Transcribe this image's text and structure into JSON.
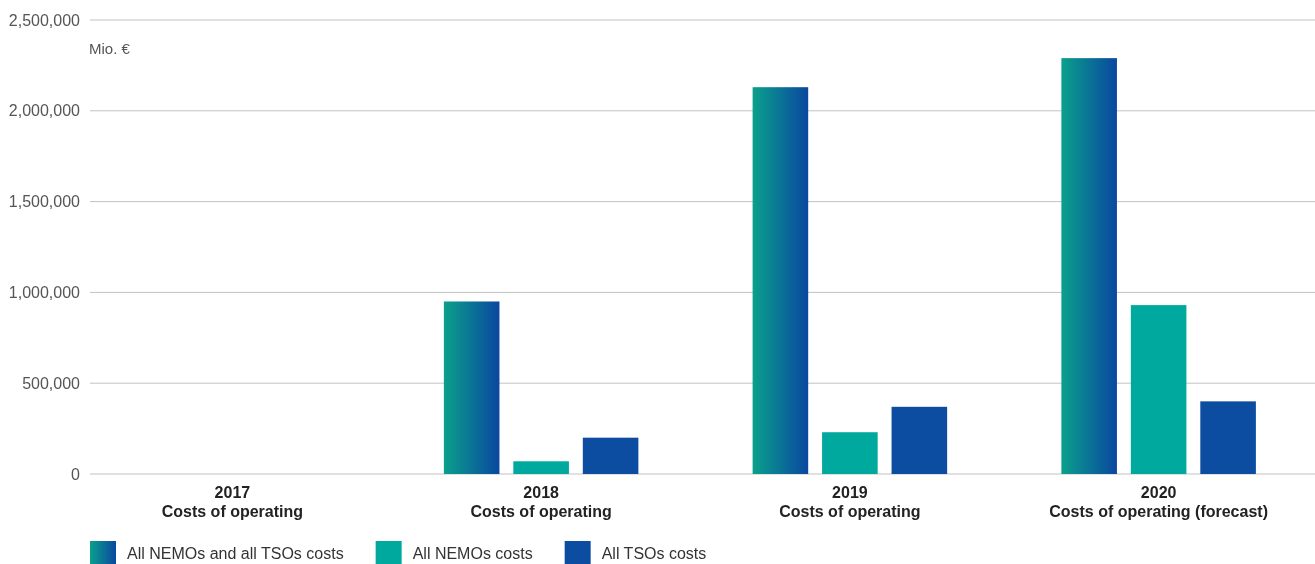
{
  "chart_data": {
    "type": "bar",
    "ylabel": "Mio. €",
    "categories": [
      "2017\nCosts of operating",
      "2018\nCosts of operating",
      "2019\nCosts of operating",
      "2020\nCosts of operating (forecast)"
    ],
    "series": [
      {
        "name": "All NEMOs and all TSOs costs",
        "color": "#0a7ea0",
        "values": [
          null,
          950000,
          2130000,
          2290000
        ]
      },
      {
        "name": "All NEMOs costs",
        "color": "#00a99d",
        "values": [
          null,
          70000,
          230000,
          930000
        ]
      },
      {
        "name": "All TSOs costs",
        "color": "#0d4da1",
        "values": [
          null,
          200000,
          370000,
          400000
        ]
      }
    ],
    "ylim": [
      0,
      2500000
    ],
    "yticks": [
      {
        "value": 0,
        "label": "0"
      },
      {
        "value": 500000,
        "label": "500,000"
      },
      {
        "value": 1000000,
        "label": "1,000,000"
      },
      {
        "value": 1500000,
        "label": "1,500,000"
      },
      {
        "value": 2000000,
        "label": "2,000,000"
      },
      {
        "value": 2500000,
        "label": "2,500,000"
      }
    ],
    "grid": "y",
    "legend": "bottom"
  }
}
